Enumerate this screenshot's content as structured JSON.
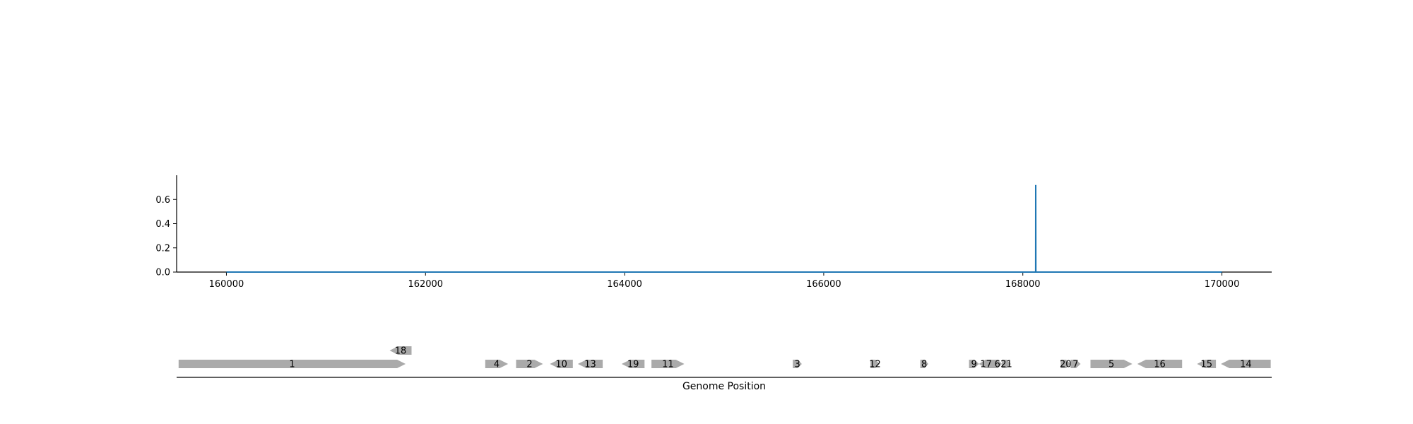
{
  "chart_data": [
    {
      "type": "line",
      "title": "",
      "xlabel": "",
      "ylabel": "",
      "xlim": [
        159500,
        170500
      ],
      "ylim": [
        0,
        0.8
      ],
      "xticks": [
        160000,
        162000,
        164000,
        166000,
        168000,
        170000
      ],
      "xtick_labels": [
        "160000",
        "162000",
        "164000",
        "166000",
        "168000",
        "170000"
      ],
      "yticks": [
        0.0,
        0.2,
        0.4,
        0.6
      ],
      "ytick_labels": [
        "0.0",
        "0.2",
        "0.4",
        "0.6"
      ],
      "grid": false,
      "colors": {
        "line": "#1f77b4",
        "axis": "#000000"
      },
      "series": [
        {
          "x": [
            160000,
            168129,
            168130,
            168131,
            170000
          ],
          "y": [
            0,
            0,
            0.72,
            0,
            0
          ]
        }
      ]
    },
    {
      "type": "gene-track",
      "title": "",
      "xlabel": "Genome Position",
      "xlim": [
        159500,
        170500
      ],
      "colors": {
        "gene": "#aaaaaa",
        "axis": "#000000"
      },
      "genes": [
        {
          "label": "1",
          "start": 159520,
          "end": 161800,
          "strand": 1,
          "row": 0
        },
        {
          "label": "18",
          "start": 161640,
          "end": 161860,
          "strand": -1,
          "row": 1
        },
        {
          "label": "4",
          "start": 162600,
          "end": 162830,
          "strand": 1,
          "row": 0
        },
        {
          "label": "2",
          "start": 162910,
          "end": 163180,
          "strand": 1,
          "row": 0
        },
        {
          "label": "10",
          "start": 163250,
          "end": 163480,
          "strand": -1,
          "row": 0
        },
        {
          "label": "13",
          "start": 163530,
          "end": 163780,
          "strand": -1,
          "row": 0
        },
        {
          "label": "19",
          "start": 163970,
          "end": 164200,
          "strand": -1,
          "row": 0
        },
        {
          "label": "11",
          "start": 164270,
          "end": 164600,
          "strand": 1,
          "row": 0
        },
        {
          "label": "3",
          "start": 165690,
          "end": 165780,
          "strand": 1,
          "row": 0
        },
        {
          "label": "12",
          "start": 166470,
          "end": 166560,
          "strand": 1,
          "row": 0
        },
        {
          "label": "8",
          "start": 166970,
          "end": 167050,
          "strand": 1,
          "row": 0
        },
        {
          "label": "9",
          "start": 167460,
          "end": 167560,
          "strand": 1,
          "row": 0
        },
        {
          "label": "17",
          "start": 167560,
          "end": 167700,
          "strand": -1,
          "row": 0
        },
        {
          "label": "6",
          "start": 167700,
          "end": 167790,
          "strand": 1,
          "row": 0
        },
        {
          "label": "21",
          "start": 167790,
          "end": 167880,
          "strand": 1,
          "row": 0
        },
        {
          "label": "20",
          "start": 168380,
          "end": 168480,
          "strand": 1,
          "row": 0
        },
        {
          "label": "7",
          "start": 168480,
          "end": 168580,
          "strand": 1,
          "row": 0
        },
        {
          "label": "5",
          "start": 168680,
          "end": 169100,
          "strand": 1,
          "row": 0
        },
        {
          "label": "16",
          "start": 169150,
          "end": 169600,
          "strand": -1,
          "row": 0
        },
        {
          "label": "15",
          "start": 169750,
          "end": 169940,
          "strand": -1,
          "row": 0
        },
        {
          "label": "14",
          "start": 169990,
          "end": 170490,
          "strand": -1,
          "row": 0
        }
      ]
    }
  ]
}
